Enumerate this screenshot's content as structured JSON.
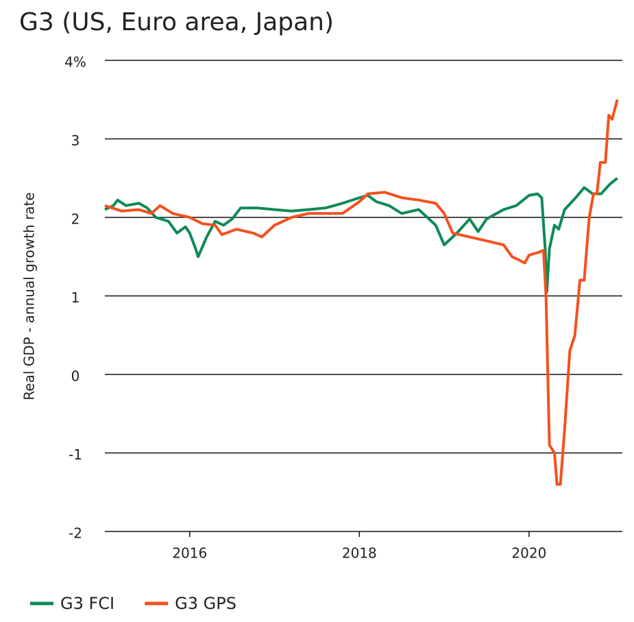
{
  "chart_data": {
    "type": "line",
    "title": "G3 (US, Euro area, Japan)",
    "y_label": "Real GDP - annual growth rate",
    "xlim": [
      2015,
      2021.1
    ],
    "xticks": [
      2016,
      2018,
      2020
    ],
    "ylim": [
      -2,
      4
    ],
    "yticks": [
      -2,
      -1,
      0,
      1,
      2,
      3,
      {
        "value": 4,
        "label": "4%"
      }
    ],
    "grid": true,
    "legend": "bottom",
    "series": [
      {
        "name": "G3 FCI",
        "color": "#0e8a55",
        "x": [
          2015.0,
          2015.1,
          2015.15,
          2015.25,
          2015.4,
          2015.5,
          2015.6,
          2015.75,
          2015.85,
          2015.95,
          2016.0,
          2016.07,
          2016.1,
          2016.2,
          2016.3,
          2016.4,
          2016.5,
          2016.6,
          2016.8,
          2017.0,
          2017.2,
          2017.4,
          2017.6,
          2017.8,
          2018.0,
          2018.1,
          2018.2,
          2018.35,
          2018.5,
          2018.7,
          2018.9,
          2019.0,
          2019.15,
          2019.3,
          2019.4,
          2019.5,
          2019.7,
          2019.85,
          2020.0,
          2020.1,
          2020.15,
          2020.19,
          2020.21,
          2020.24,
          2020.3,
          2020.35,
          2020.42,
          2020.55,
          2020.65,
          2020.75,
          2020.85,
          2020.95,
          2021.04
        ],
        "values": [
          2.1,
          2.15,
          2.22,
          2.15,
          2.18,
          2.12,
          2.0,
          1.95,
          1.8,
          1.88,
          1.8,
          1.6,
          1.5,
          1.75,
          1.95,
          1.9,
          1.98,
          2.12,
          2.12,
          2.1,
          2.08,
          2.1,
          2.12,
          2.18,
          2.25,
          2.28,
          2.2,
          2.15,
          2.05,
          2.1,
          1.9,
          1.65,
          1.8,
          1.98,
          1.82,
          1.98,
          2.1,
          2.15,
          2.28,
          2.3,
          2.25,
          1.6,
          1.05,
          1.6,
          1.9,
          1.85,
          2.1,
          2.25,
          2.38,
          2.3,
          2.3,
          2.42,
          2.5
        ]
      },
      {
        "name": "G3 GPS",
        "color": "#f4511e",
        "x": [
          2015.0,
          2015.2,
          2015.4,
          2015.55,
          2015.65,
          2015.8,
          2016.0,
          2016.15,
          2016.3,
          2016.38,
          2016.55,
          2016.75,
          2016.85,
          2017.0,
          2017.2,
          2017.4,
          2017.6,
          2017.8,
          2018.0,
          2018.1,
          2018.3,
          2018.5,
          2018.7,
          2018.9,
          2019.0,
          2019.1,
          2019.3,
          2019.5,
          2019.7,
          2019.8,
          2019.95,
          2020.0,
          2020.1,
          2020.17,
          2020.2,
          2020.24,
          2020.3,
          2020.33,
          2020.37,
          2020.42,
          2020.48,
          2020.54,
          2020.6,
          2020.65,
          2020.71,
          2020.76,
          2020.8,
          2020.84,
          2020.9,
          2020.94,
          2020.98,
          2021.04
        ],
        "values": [
          2.15,
          2.08,
          2.1,
          2.05,
          2.15,
          2.05,
          2.0,
          1.92,
          1.9,
          1.78,
          1.85,
          1.8,
          1.75,
          1.9,
          2.0,
          2.05,
          2.05,
          2.05,
          2.2,
          2.3,
          2.32,
          2.25,
          2.22,
          2.18,
          2.05,
          1.8,
          1.75,
          1.7,
          1.65,
          1.5,
          1.42,
          1.52,
          1.55,
          1.58,
          1.0,
          -0.9,
          -1.0,
          -1.4,
          -1.4,
          -0.7,
          0.3,
          0.5,
          1.2,
          1.2,
          2.0,
          2.3,
          2.3,
          2.7,
          2.7,
          3.3,
          3.25,
          3.5
        ]
      }
    ]
  }
}
